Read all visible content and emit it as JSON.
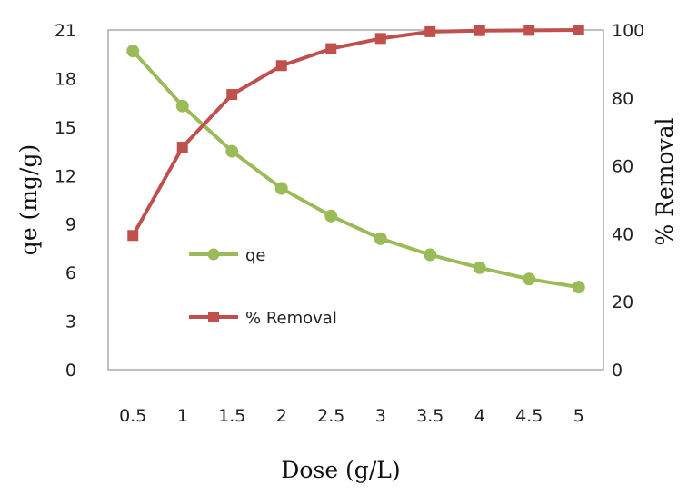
{
  "chart_data": {
    "type": "line",
    "x": [
      0.5,
      1,
      1.5,
      2,
      2.5,
      3,
      3.5,
      4,
      4.5,
      5
    ],
    "x_tick_labels": [
      "0.5",
      "1",
      "1.5",
      "2",
      "2.5",
      "3",
      "3.5",
      "4",
      "4.5",
      "5"
    ],
    "xlabel": "Dose (g/L)",
    "ylabel_left": "qe (mg/g)",
    "ylabel_right": "% Removal",
    "ylim_left": [
      0,
      21
    ],
    "ylim_right": [
      0,
      100
    ],
    "yticks_left": [
      "0",
      "3",
      "6",
      "9",
      "12",
      "15",
      "18",
      "21"
    ],
    "yticks_right": [
      "0",
      "20",
      "40",
      "60",
      "80",
      "100"
    ],
    "grid": false,
    "legend_position": "center-left",
    "series": [
      {
        "name": "qe",
        "axis": "left",
        "color": "#9BBB59",
        "marker": "circle",
        "values": [
          19.7,
          16.3,
          13.5,
          11.2,
          9.5,
          8.1,
          7.1,
          6.3,
          5.6,
          5.1
        ]
      },
      {
        "name": "% Removal",
        "axis": "right",
        "color": "#C0504D",
        "marker": "square",
        "values": [
          39.5,
          65.5,
          81,
          89.5,
          94.5,
          97.5,
          99.5,
          99.8,
          99.9,
          100
        ]
      }
    ]
  }
}
